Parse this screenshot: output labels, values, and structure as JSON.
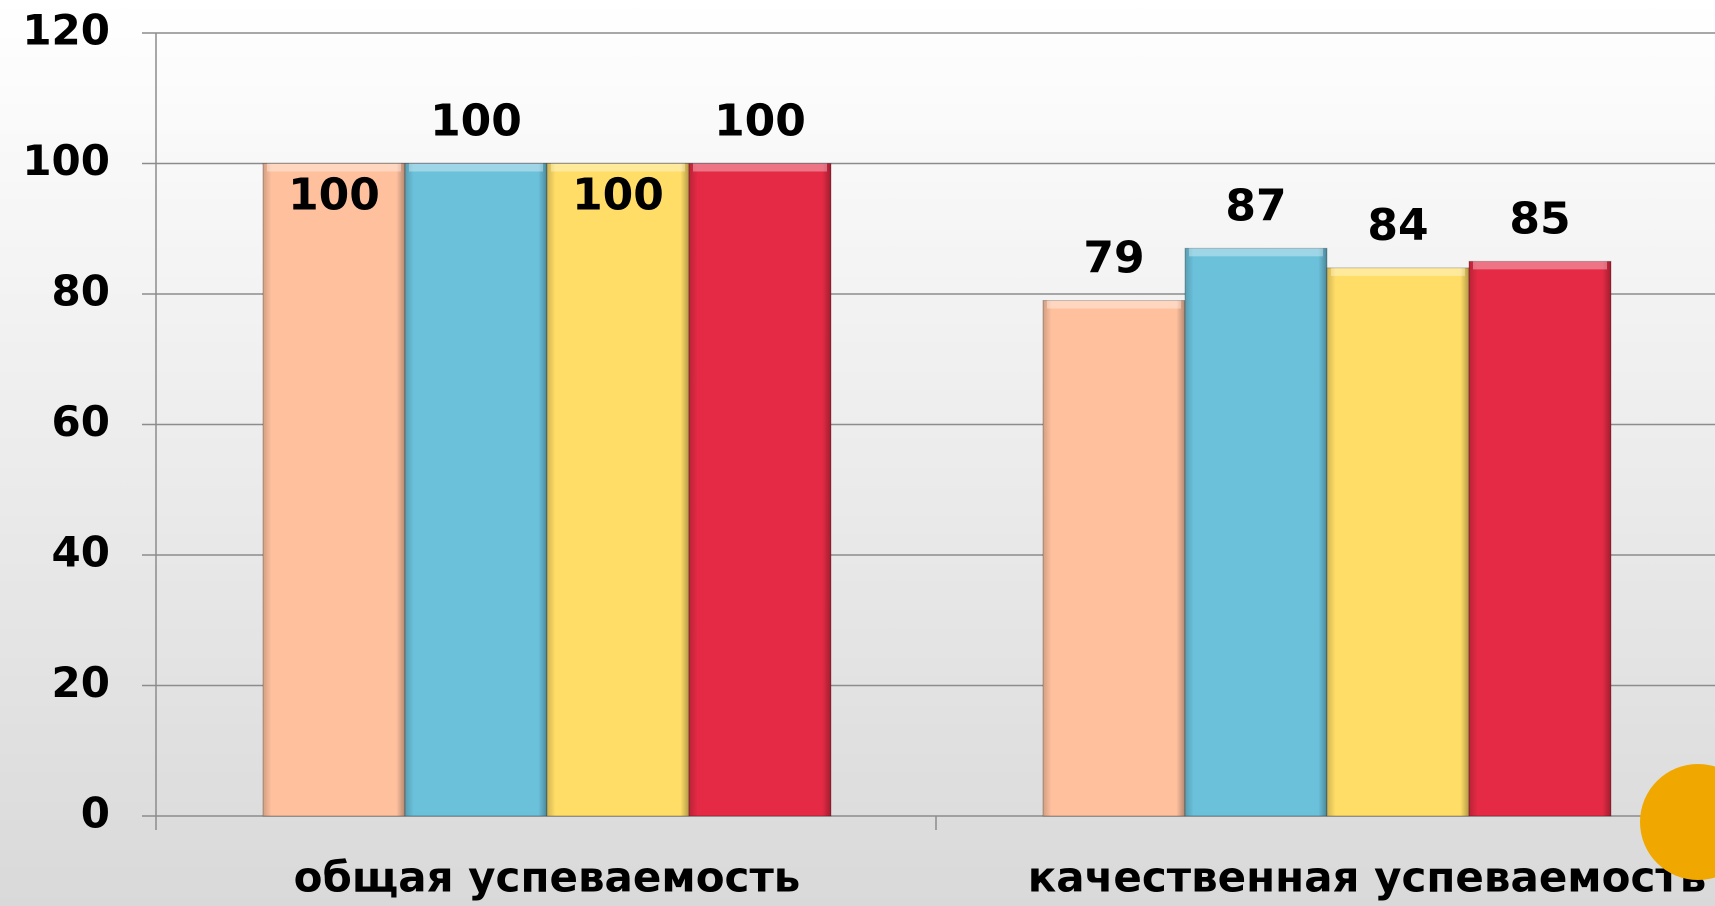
{
  "chart_data": {
    "type": "bar",
    "categories": [
      "общая успеваемость",
      "качественная успеваемость"
    ],
    "series": [
      {
        "color": "#ffc09e",
        "values": [
          100,
          79
        ]
      },
      {
        "color": "#6bc0da",
        "values": [
          100,
          87
        ]
      },
      {
        "color": "#ffdd66",
        "values": [
          100,
          84
        ]
      },
      {
        "color": "#e42a44",
        "values": [
          100,
          85
        ]
      }
    ],
    "ylim": [
      0,
      120
    ],
    "yticks": [
      0,
      20,
      40,
      60,
      80,
      100,
      120
    ],
    "grid": true
  }
}
